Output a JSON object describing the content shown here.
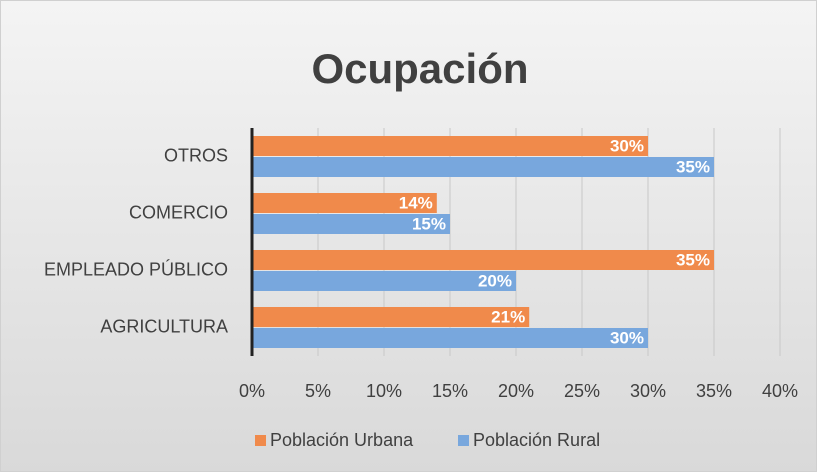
{
  "chart_data": {
    "type": "hbar",
    "title": "Ocupación",
    "categories": [
      "OTROS",
      "COMERCIO",
      "EMPLEADO PÚBLICO",
      "AGRICULTURA"
    ],
    "series": [
      {
        "name": "Población Urbana",
        "color": "#f08a4b",
        "values": [
          30,
          14,
          35,
          21
        ],
        "value_labels": [
          "30%",
          "14%",
          "35%",
          "21%"
        ]
      },
      {
        "name": "Población Rural",
        "color": "#78a7dd",
        "values": [
          35,
          15,
          20,
          30
        ],
        "value_labels": [
          "35%",
          "15%",
          "20%",
          "30%"
        ]
      }
    ],
    "xlim": [
      0,
      40
    ],
    "xticks": [
      {
        "value": 0,
        "label": "0%"
      },
      {
        "value": 5,
        "label": "5%"
      },
      {
        "value": 10,
        "label": "10%"
      },
      {
        "value": 15,
        "label": "15%"
      },
      {
        "value": 20,
        "label": "20%"
      },
      {
        "value": 25,
        "label": "25%"
      },
      {
        "value": 30,
        "label": "30%"
      },
      {
        "value": 35,
        "label": "35%"
      },
      {
        "value": 40,
        "label": "40%"
      }
    ],
    "grid": true,
    "legend": "bottom"
  }
}
